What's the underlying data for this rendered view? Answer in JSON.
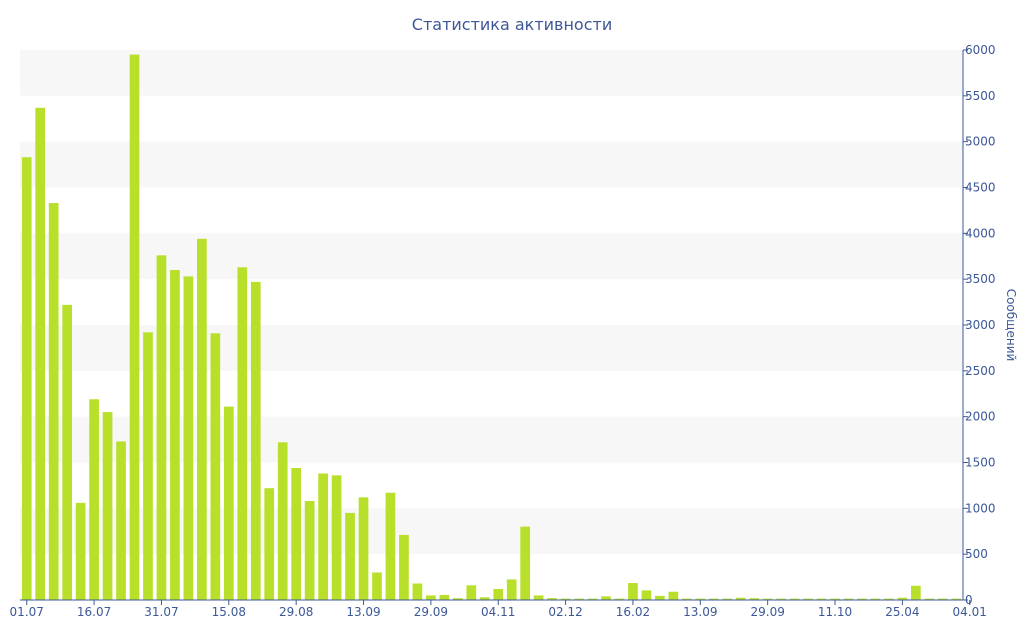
{
  "chart_data": {
    "type": "bar",
    "title": "Статистика активности",
    "ylabel": "Сообщений",
    "xlabel": "",
    "ylim": [
      0,
      6000
    ],
    "yticks": [
      0,
      500,
      1000,
      1500,
      2000,
      2500,
      3000,
      3500,
      4000,
      4500,
      5000,
      5500,
      6000
    ],
    "y_axis_side": "right",
    "grid": "alternating horizontal bands",
    "x_tick_labels": [
      "01.07",
      "16.07",
      "31.07",
      "15.08",
      "29.08",
      "13.09",
      "29.09",
      "04.11",
      "02.12",
      "16.02",
      "13.09",
      "29.09",
      "11.10",
      "25.04",
      "04.01"
    ],
    "x_tick_bar_index": [
      0,
      5,
      10,
      15,
      20,
      25,
      30,
      35,
      40,
      45,
      50,
      55,
      60,
      65,
      70
    ],
    "values": [
      4830,
      5370,
      4330,
      3220,
      1060,
      2190,
      2050,
      1730,
      5950,
      2920,
      3760,
      3600,
      3530,
      3940,
      2910,
      2110,
      3630,
      3470,
      1220,
      1720,
      1440,
      1080,
      1380,
      1360,
      950,
      1120,
      300,
      1170,
      710,
      180,
      50,
      55,
      20,
      160,
      30,
      120,
      225,
      800,
      50,
      20,
      15,
      15,
      15,
      40,
      15,
      185,
      105,
      45,
      90,
      15,
      15,
      15,
      15,
      25,
      20,
      15,
      15,
      15,
      15,
      15,
      15,
      15,
      15,
      15,
      15,
      25,
      155,
      15,
      15,
      15
    ],
    "bar_color": "#b8e02a",
    "axis_text_color": "#3d5898",
    "band_color": "#f7f7f7"
  }
}
